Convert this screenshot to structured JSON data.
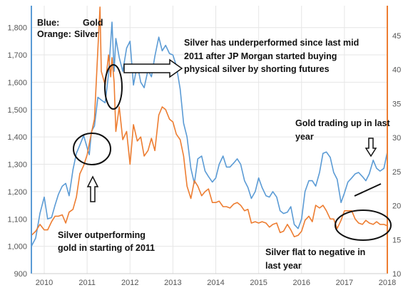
{
  "chart_data": {
    "type": "line",
    "legend": [
      {
        "prefix": "Blue:",
        "name": "Gold"
      },
      {
        "prefix": "Orange:",
        "name": "Silver"
      }
    ],
    "x_ticks": [
      "2010",
      "2011",
      "2012",
      "2013",
      "2014",
      "2015",
      "2016",
      "2017",
      "2018"
    ],
    "y_left_ticks": [
      "900",
      "1,000",
      "1,100",
      "1,200",
      "1,300",
      "1,400",
      "1,500",
      "1,600",
      "1,700",
      "1,800"
    ],
    "y_right_ticks": [
      "10",
      "15",
      "20",
      "25",
      "30",
      "35",
      "40",
      "45"
    ],
    "x_range": [
      2009.7,
      2018.0
    ],
    "y_left_range": [
      900,
      1880
    ],
    "y_right_range": [
      10,
      49.4
    ],
    "grid": true,
    "colors": {
      "gold": "#5b9bd5",
      "silver": "#ed7d31",
      "axis_left": "#5b9bd5",
      "axis_right": "#ed7d31"
    },
    "series": [
      {
        "name": "Gold",
        "axis": "left",
        "x": [
          2009.7,
          2009.8,
          2009.9,
          2010.0,
          2010.08,
          2010.17,
          2010.25,
          2010.33,
          2010.42,
          2010.5,
          2010.58,
          2010.67,
          2010.75,
          2010.83,
          2010.92,
          2011.0,
          2011.05,
          2011.1,
          2011.17,
          2011.25,
          2011.33,
          2011.42,
          2011.5,
          2011.58,
          2011.63,
          2011.67,
          2011.75,
          2011.83,
          2011.92,
          2012.0,
          2012.08,
          2012.17,
          2012.25,
          2012.33,
          2012.42,
          2012.5,
          2012.58,
          2012.67,
          2012.75,
          2012.83,
          2012.92,
          2013.0,
          2013.08,
          2013.17,
          2013.25,
          2013.33,
          2013.42,
          2013.5,
          2013.58,
          2013.67,
          2013.75,
          2013.83,
          2013.92,
          2014.0,
          2014.08,
          2014.17,
          2014.25,
          2014.33,
          2014.42,
          2014.5,
          2014.58,
          2014.67,
          2014.75,
          2014.83,
          2014.92,
          2015.0,
          2015.08,
          2015.17,
          2015.25,
          2015.33,
          2015.42,
          2015.5,
          2015.58,
          2015.67,
          2015.75,
          2015.83,
          2015.92,
          2016.0,
          2016.08,
          2016.17,
          2016.25,
          2016.33,
          2016.42,
          2016.5,
          2016.58,
          2016.67,
          2016.75,
          2016.83,
          2016.92,
          2017.0,
          2017.08,
          2017.17,
          2017.25,
          2017.33,
          2017.42,
          2017.5,
          2017.58,
          2017.67,
          2017.75,
          2017.83,
          2017.92,
          2018.0
        ],
        "values": [
          1000,
          1030,
          1120,
          1180,
          1100,
          1105,
          1150,
          1190,
          1220,
          1230,
          1185,
          1280,
          1340,
          1370,
          1405,
          1360,
          1335,
          1420,
          1440,
          1545,
          1535,
          1525,
          1630,
          1820,
          1640,
          1760,
          1690,
          1640,
          1725,
          1750,
          1590,
          1665,
          1600,
          1580,
          1645,
          1620,
          1695,
          1765,
          1715,
          1735,
          1705,
          1700,
          1660,
          1575,
          1450,
          1400,
          1285,
          1230,
          1320,
          1330,
          1275,
          1255,
          1235,
          1250,
          1300,
          1330,
          1290,
          1290,
          1305,
          1320,
          1300,
          1240,
          1215,
          1175,
          1200,
          1250,
          1215,
          1185,
          1180,
          1200,
          1180,
          1130,
          1120,
          1125,
          1145,
          1080,
          1065,
          1100,
          1200,
          1240,
          1240,
          1220,
          1270,
          1340,
          1345,
          1325,
          1270,
          1245,
          1160,
          1195,
          1235,
          1250,
          1265,
          1270,
          1255,
          1240,
          1265,
          1315,
          1285,
          1275,
          1285,
          1345
        ]
      },
      {
        "name": "Silver",
        "axis": "left",
        "x": [
          2009.7,
          2009.8,
          2009.9,
          2010.0,
          2010.08,
          2010.17,
          2010.25,
          2010.33,
          2010.42,
          2010.5,
          2010.58,
          2010.67,
          2010.75,
          2010.83,
          2010.92,
          2011.0,
          2011.08,
          2011.17,
          2011.25,
          2011.3,
          2011.33,
          2011.42,
          2011.5,
          2011.55,
          2011.58,
          2011.63,
          2011.67,
          2011.75,
          2011.83,
          2011.92,
          2012.0,
          2012.08,
          2012.17,
          2012.25,
          2012.33,
          2012.42,
          2012.5,
          2012.58,
          2012.67,
          2012.75,
          2012.83,
          2012.92,
          2013.0,
          2013.08,
          2013.17,
          2013.25,
          2013.33,
          2013.42,
          2013.5,
          2013.58,
          2013.67,
          2013.75,
          2013.83,
          2013.92,
          2014.0,
          2014.08,
          2014.17,
          2014.25,
          2014.33,
          2014.42,
          2014.5,
          2014.58,
          2014.67,
          2014.75,
          2014.83,
          2014.92,
          2015.0,
          2015.08,
          2015.17,
          2015.25,
          2015.33,
          2015.42,
          2015.5,
          2015.58,
          2015.67,
          2015.75,
          2015.83,
          2015.92,
          2016.0,
          2016.08,
          2016.17,
          2016.25,
          2016.33,
          2016.42,
          2016.5,
          2016.58,
          2016.67,
          2016.75,
          2016.83,
          2016.92,
          2017.0,
          2017.08,
          2017.17,
          2017.25,
          2017.33,
          2017.42,
          2017.5,
          2017.58,
          2017.67,
          2017.75,
          2017.83,
          2017.92,
          2018.0
        ],
        "values": [
          1040,
          1055,
          1080,
          1060,
          1060,
          1090,
          1110,
          1110,
          1115,
          1085,
          1125,
          1135,
          1180,
          1265,
          1295,
          1335,
          1400,
          1465,
          1720,
          1875,
          1640,
          1590,
          1700,
          1620,
          1690,
          1600,
          1420,
          1510,
          1390,
          1420,
          1300,
          1445,
          1385,
          1400,
          1330,
          1350,
          1395,
          1350,
          1480,
          1510,
          1500,
          1465,
          1455,
          1410,
          1390,
          1330,
          1220,
          1175,
          1240,
          1220,
          1185,
          1200,
          1210,
          1160,
          1160,
          1165,
          1145,
          1145,
          1140,
          1155,
          1160,
          1150,
          1130,
          1135,
          1085,
          1090,
          1085,
          1090,
          1085,
          1070,
          1080,
          1085,
          1050,
          1055,
          1080,
          1060,
          1035,
          1040,
          1055,
          1095,
          1110,
          1090,
          1150,
          1140,
          1150,
          1130,
          1100,
          1100,
          1065,
          1095,
          1130,
          1130,
          1130,
          1100,
          1085,
          1080,
          1095,
          1085,
          1080,
          1090,
          1080,
          1080,
          1075
        ]
      }
    ]
  },
  "annotations": {
    "legend_blue": "Blue:",
    "legend_gold": "Gold",
    "legend_orange": "Orange:",
    "legend_silver": "Silver",
    "top_line1": "Silver has underperformed since last mid",
    "top_line2": "2011 after JP Morgan started buying",
    "top_line3": "physical silver by shorting futures",
    "gold_up_line1": "Gold trading up in last",
    "gold_up_line2": "year",
    "silver_out_line1": "Silver outperforming",
    "silver_out_line2": "gold in starting of 2011",
    "silver_flat_line1": "Silver flat to negative in",
    "silver_flat_line2": "last year"
  }
}
